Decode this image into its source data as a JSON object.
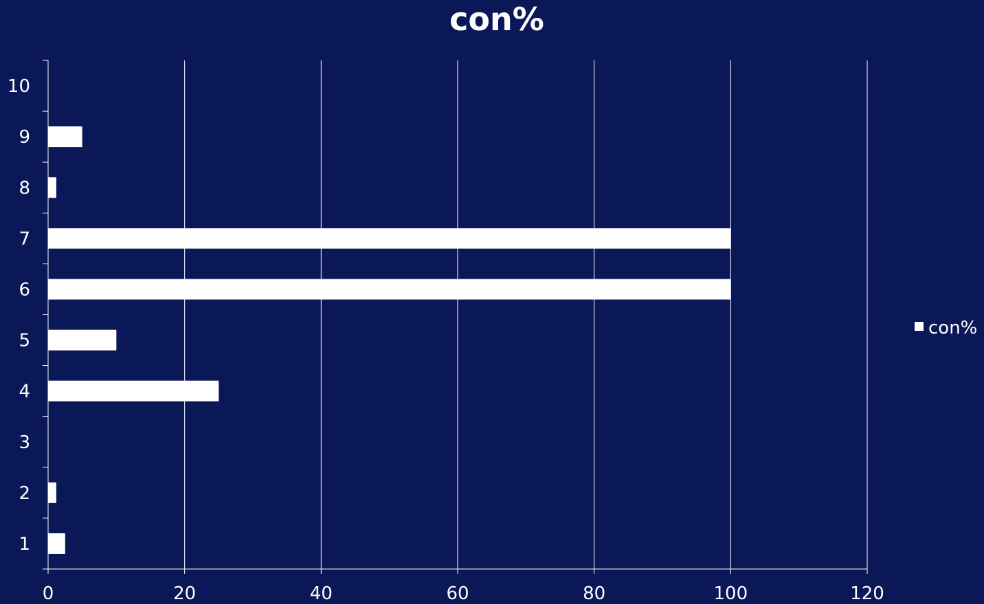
{
  "colors": {
    "background": "#0b1858",
    "bar": "#ffffff",
    "gridline": "#ffffff",
    "text": "#ffffff"
  },
  "chart_data": {
    "type": "bar",
    "orientation": "horizontal",
    "title": "con%",
    "categories": [
      "1",
      "2",
      "3",
      "4",
      "5",
      "6",
      "7",
      "8",
      "9",
      "10"
    ],
    "series": [
      {
        "name": "con%",
        "values": [
          2.5,
          1.2,
          0,
          25,
          10,
          100,
          100,
          1.2,
          5,
          0
        ]
      }
    ],
    "xlim": [
      0,
      120
    ],
    "x_ticks": [
      "0",
      "20",
      "40",
      "60",
      "80",
      "100",
      "120"
    ],
    "xlabel": "",
    "ylabel": "",
    "grid": "vertical",
    "legend": {
      "position": "right",
      "entries": [
        "con%"
      ]
    }
  }
}
